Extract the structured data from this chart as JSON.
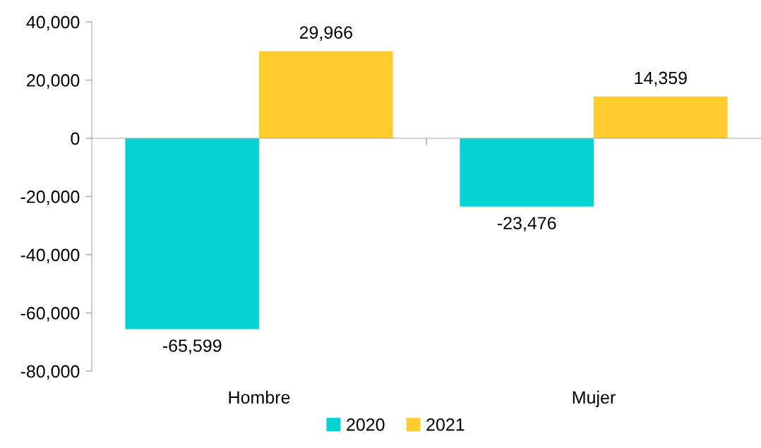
{
  "chart_data": {
    "type": "bar",
    "categories": [
      "Hombre",
      "Mujer"
    ],
    "series": [
      {
        "name": "2020",
        "color": "#05d3d3",
        "values": [
          -65599,
          -23476
        ],
        "value_labels": [
          "-65,599",
          "-23,476"
        ]
      },
      {
        "name": "2021",
        "color": "#ffcc30",
        "values": [
          29966,
          14359
        ],
        "value_labels": [
          "29,966",
          "14,359"
        ]
      }
    ],
    "ylim": [
      -80000,
      40000
    ],
    "yticks": [
      {
        "value": -80000,
        "label": "-80,000"
      },
      {
        "value": -60000,
        "label": "-60,000"
      },
      {
        "value": -40000,
        "label": "-40,000"
      },
      {
        "value": -20000,
        "label": "-20,000"
      },
      0,
      {
        "value": 20000,
        "label": "20,000"
      },
      {
        "value": 40000,
        "label": "40,000"
      }
    ],
    "legend": "bottom"
  }
}
